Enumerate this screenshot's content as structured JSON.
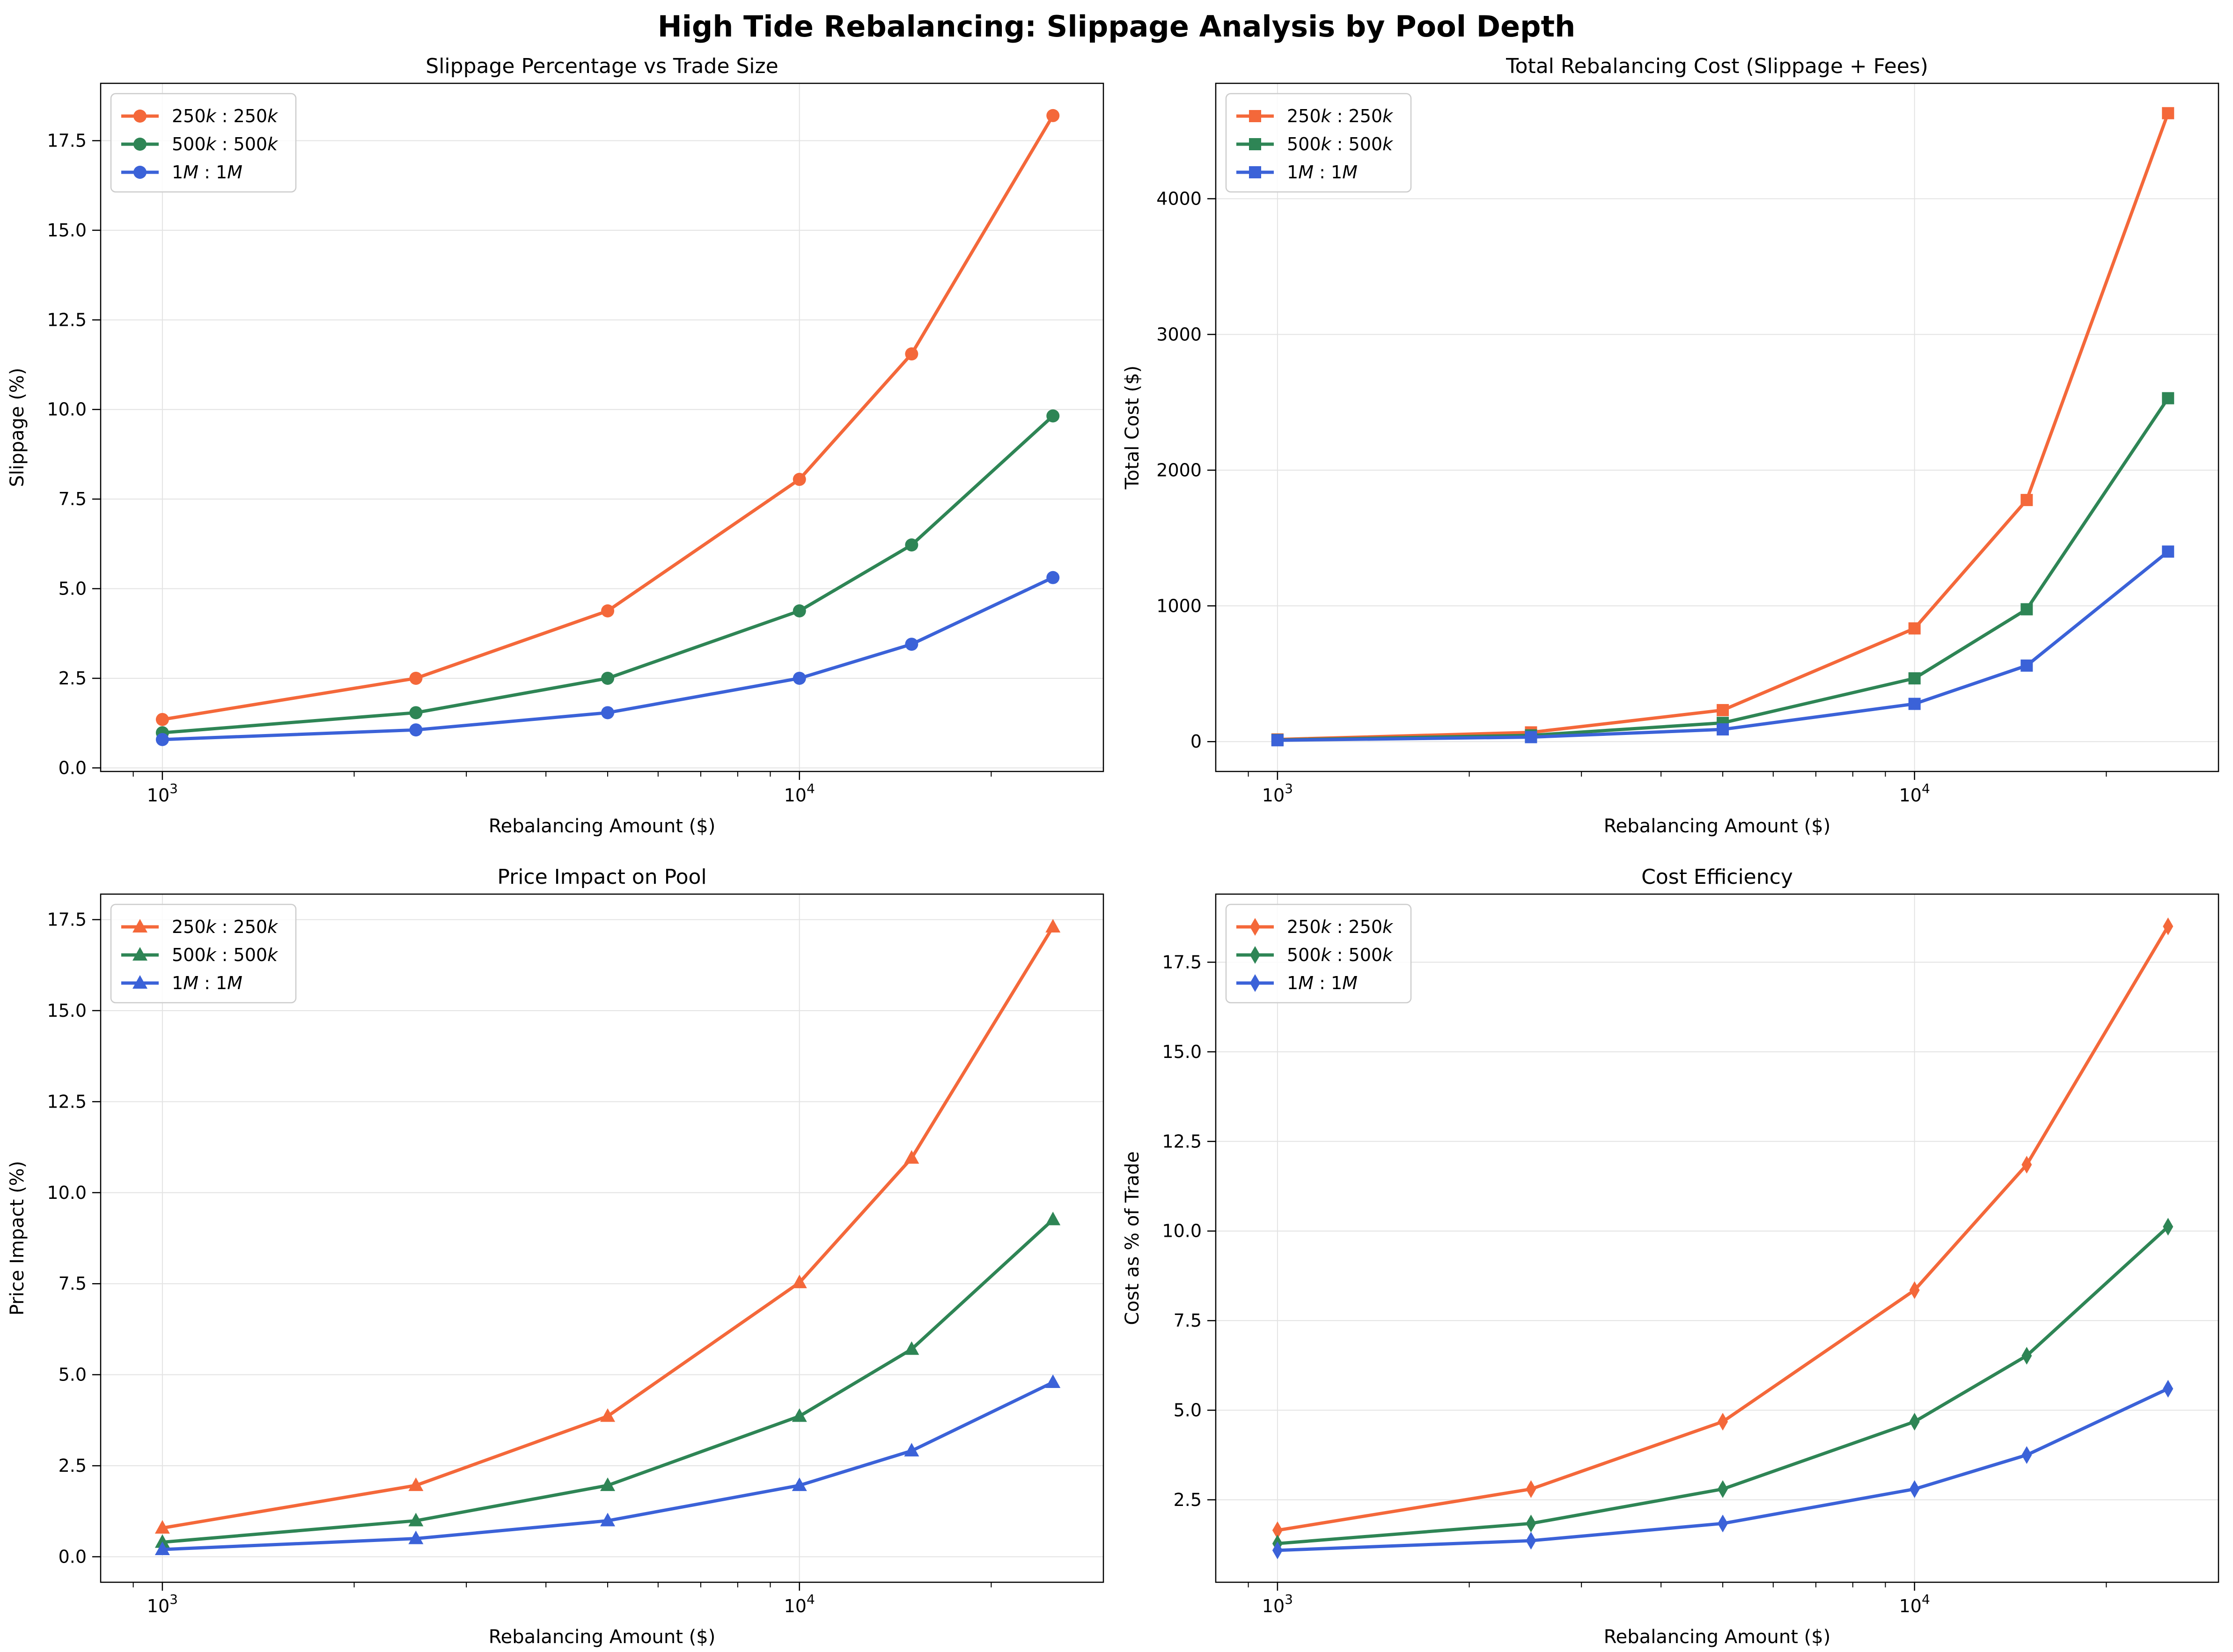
{
  "figure": {
    "title": "High Tide Rebalancing: Slippage Analysis by Pool Depth"
  },
  "colors": {
    "250k": "#f4683a",
    "500k": "#2e8555",
    "1M": "#3b62d8",
    "grid": "#e3e3e3"
  },
  "chart_data": [
    {
      "type": "line",
      "title": "Slippage Percentage vs Trade Size",
      "xlabel": "Rebalancing Amount ($)",
      "ylabel": "Slippage (%)",
      "xscale": "log",
      "xlim": [
        800,
        30000
      ],
      "ylim": [
        -0.1,
        19.1
      ],
      "xticks": [
        {
          "v": 1000,
          "base": "10",
          "exp": "3"
        },
        {
          "v": 10000,
          "base": "10",
          "exp": "4"
        }
      ],
      "yticks": [
        {
          "v": 0,
          "label": "0.0"
        },
        {
          "v": 2.5,
          "label": "2.5"
        },
        {
          "v": 5,
          "label": "5.0"
        },
        {
          "v": 7.5,
          "label": "7.5"
        },
        {
          "v": 10,
          "label": "10.0"
        },
        {
          "v": 12.5,
          "label": "12.5"
        },
        {
          "v": 15,
          "label": "15.0"
        },
        {
          "v": 17.5,
          "label": "17.5"
        }
      ],
      "marker": "circle",
      "grid": true,
      "legend": "top-left",
      "x": [
        1000,
        2500,
        5000,
        10000,
        15000,
        25000
      ],
      "series": [
        {
          "name": "250k:250k",
          "name_parts": [
            "250",
            "k",
            "250",
            "k"
          ],
          "color": "#f4683a",
          "values": [
            1.35,
            2.5,
            4.38,
            8.05,
            11.55,
            18.2
          ]
        },
        {
          "name": "500k:500k",
          "name_parts": [
            "500",
            "k",
            "500",
            "k"
          ],
          "color": "#2e8555",
          "values": [
            0.98,
            1.54,
            2.5,
            4.38,
            6.22,
            9.82
          ]
        },
        {
          "name": "1M:1M",
          "name_parts": [
            "1",
            "M",
            "1",
            "M"
          ],
          "color": "#3b62d8",
          "values": [
            0.79,
            1.06,
            1.54,
            2.5,
            3.45,
            5.31
          ]
        }
      ]
    },
    {
      "type": "line",
      "title": "Total Rebalancing Cost (Slippage + Fees)",
      "xlabel": "Rebalancing Amount ($)",
      "ylabel": "Total Cost ($)",
      "xscale": "log",
      "xlim": [
        800,
        30000
      ],
      "ylim": [
        -220,
        4850
      ],
      "xticks": [
        {
          "v": 1000,
          "base": "10",
          "exp": "3"
        },
        {
          "v": 10000,
          "base": "10",
          "exp": "4"
        }
      ],
      "yticks": [
        {
          "v": 0,
          "label": "0"
        },
        {
          "v": 1000,
          "label": "1000"
        },
        {
          "v": 2000,
          "label": "2000"
        },
        {
          "v": 3000,
          "label": "3000"
        },
        {
          "v": 4000,
          "label": "4000"
        }
      ],
      "marker": "square",
      "grid": true,
      "legend": "top-left",
      "x": [
        1000,
        2500,
        5000,
        10000,
        15000,
        25000
      ],
      "series": [
        {
          "name": "250k:250k",
          "name_parts": [
            "250",
            "k",
            "250",
            "k"
          ],
          "color": "#f4683a",
          "values": [
            16,
            68,
            232,
            834,
            1780,
            4630
          ]
        },
        {
          "name": "500k:500k",
          "name_parts": [
            "500",
            "k",
            "500",
            "k"
          ],
          "color": "#2e8555",
          "values": [
            12,
            46,
            138,
            466,
            975,
            2530
          ]
        },
        {
          "name": "1M:1M",
          "name_parts": [
            "1",
            "M",
            "1",
            "M"
          ],
          "color": "#3b62d8",
          "values": [
            10,
            33,
            90,
            278,
            560,
            1400
          ]
        }
      ]
    },
    {
      "type": "line",
      "title": "Price Impact on Pool",
      "xlabel": "Rebalancing Amount ($)",
      "ylabel": "Price Impact (%)",
      "xscale": "log",
      "xlim": [
        800,
        30000
      ],
      "ylim": [
        -0.7,
        18.2
      ],
      "xticks": [
        {
          "v": 1000,
          "base": "10",
          "exp": "3"
        },
        {
          "v": 10000,
          "base": "10",
          "exp": "4"
        }
      ],
      "yticks": [
        {
          "v": 0,
          "label": "0.0"
        },
        {
          "v": 2.5,
          "label": "2.5"
        },
        {
          "v": 5,
          "label": "5.0"
        },
        {
          "v": 7.5,
          "label": "7.5"
        },
        {
          "v": 10,
          "label": "10.0"
        },
        {
          "v": 12.5,
          "label": "12.5"
        },
        {
          "v": 15,
          "label": "15.0"
        },
        {
          "v": 17.5,
          "label": "17.5"
        }
      ],
      "marker": "triangle",
      "grid": true,
      "legend": "top-left",
      "x": [
        1000,
        2500,
        5000,
        10000,
        15000,
        25000
      ],
      "series": [
        {
          "name": "250k:250k",
          "name_parts": [
            "250",
            "k",
            "250",
            "k"
          ],
          "color": "#f4683a",
          "values": [
            0.79,
            1.96,
            3.86,
            7.53,
            10.95,
            17.3
          ]
        },
        {
          "name": "500k:500k",
          "name_parts": [
            "500",
            "k",
            "500",
            "k"
          ],
          "color": "#2e8555",
          "values": [
            0.4,
            0.99,
            1.96,
            3.86,
            5.7,
            9.26
          ]
        },
        {
          "name": "1M:1M",
          "name_parts": [
            "1",
            "M",
            "1",
            "M"
          ],
          "color": "#3b62d8",
          "values": [
            0.2,
            0.5,
            0.99,
            1.96,
            2.91,
            4.79
          ]
        }
      ]
    },
    {
      "type": "line",
      "title": "Cost Efficiency",
      "xlabel": "Rebalancing Amount ($)",
      "ylabel": "Cost as % of Trade",
      "xscale": "log",
      "xlim": [
        800,
        30000
      ],
      "ylim": [
        0.2,
        19.4
      ],
      "xticks": [
        {
          "v": 1000,
          "base": "10",
          "exp": "3"
        },
        {
          "v": 10000,
          "base": "10",
          "exp": "4"
        }
      ],
      "yticks": [
        {
          "v": 2.5,
          "label": "2.5"
        },
        {
          "v": 5,
          "label": "5.0"
        },
        {
          "v": 7.5,
          "label": "7.5"
        },
        {
          "v": 10,
          "label": "10.0"
        },
        {
          "v": 12.5,
          "label": "12.5"
        },
        {
          "v": 15,
          "label": "15.0"
        },
        {
          "v": 17.5,
          "label": "17.5"
        }
      ],
      "marker": "diamond",
      "grid": true,
      "legend": "top-left",
      "x": [
        1000,
        2500,
        5000,
        10000,
        15000,
        25000
      ],
      "series": [
        {
          "name": "250k:250k",
          "name_parts": [
            "250",
            "k",
            "250",
            "k"
          ],
          "color": "#f4683a",
          "values": [
            1.65,
            2.8,
            4.68,
            8.35,
            11.85,
            18.5
          ]
        },
        {
          "name": "500k:500k",
          "name_parts": [
            "500",
            "k",
            "500",
            "k"
          ],
          "color": "#2e8555",
          "values": [
            1.28,
            1.84,
            2.8,
            4.68,
            6.52,
            10.12
          ]
        },
        {
          "name": "1M:1M",
          "name_parts": [
            "1",
            "M",
            "1",
            "M"
          ],
          "color": "#3b62d8",
          "values": [
            1.09,
            1.36,
            1.84,
            2.8,
            3.75,
            5.6
          ]
        }
      ]
    }
  ]
}
